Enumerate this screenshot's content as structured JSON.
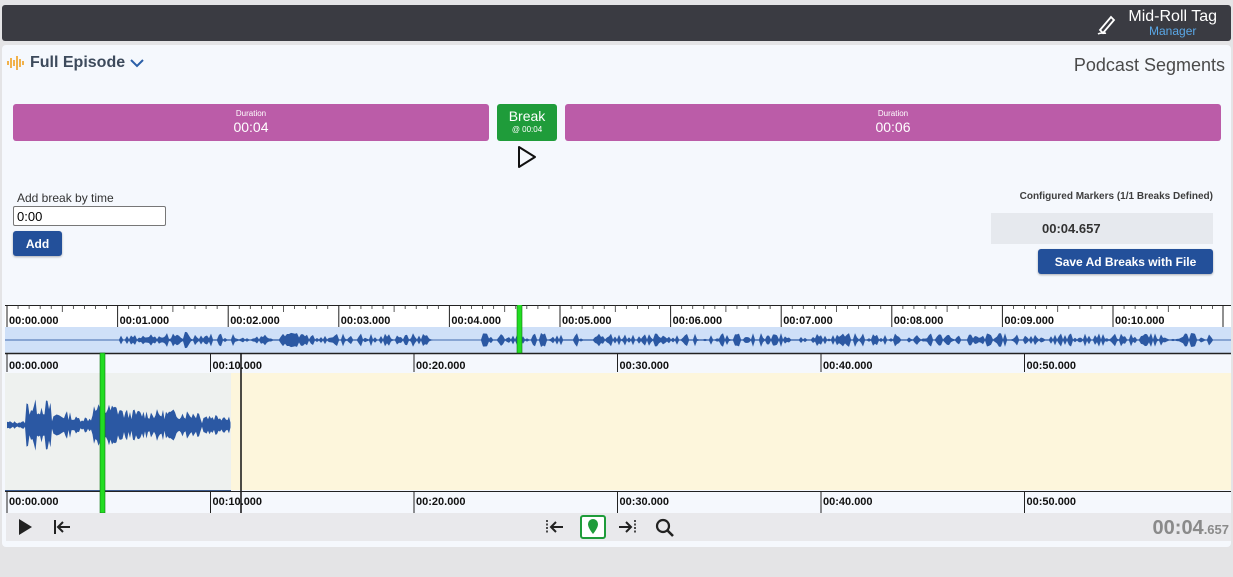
{
  "app": {
    "title": "Mid-Roll Tag",
    "subtitle": "Manager",
    "logo_icon": "pen-icon"
  },
  "header": {
    "episode_select": "Full Episode",
    "segments_title": "Podcast Segments"
  },
  "segments": [
    {
      "caption": "Duration",
      "value": "00:04"
    },
    {
      "caption": "Duration",
      "value": "00:06"
    }
  ],
  "break_button": {
    "label": "Break",
    "time": "@ 00:04"
  },
  "add_break": {
    "label": "Add break by time",
    "value": "0:00",
    "button": "Add"
  },
  "markers": {
    "title": "Configured Markers (1/1 Breaks Defined)",
    "items": [
      "00:04.657"
    ],
    "save_button": "Save Ad Breaks with File"
  },
  "overview_ticks": [
    "00:00.000",
    "00:01.000",
    "00:02.000",
    "00:03.000",
    "00:04.000",
    "00:05.000",
    "00:06.000",
    "00:07.000",
    "00:08.000",
    "00:09.000",
    "00:10.000"
  ],
  "main_ticks": [
    "00:00.000",
    "00:10.000",
    "00:20.000",
    "00:30.000",
    "00:40.000",
    "00:50.000"
  ],
  "playback": {
    "time_main": "00:04",
    "time_ms": ".657"
  },
  "colors": {
    "segment": "#bb5ca8",
    "break": "#1f9c3a",
    "button": "#23509a",
    "waveform": "#2b58a3",
    "marker": "#22dd22",
    "empty_region": "#fdf6dc"
  }
}
